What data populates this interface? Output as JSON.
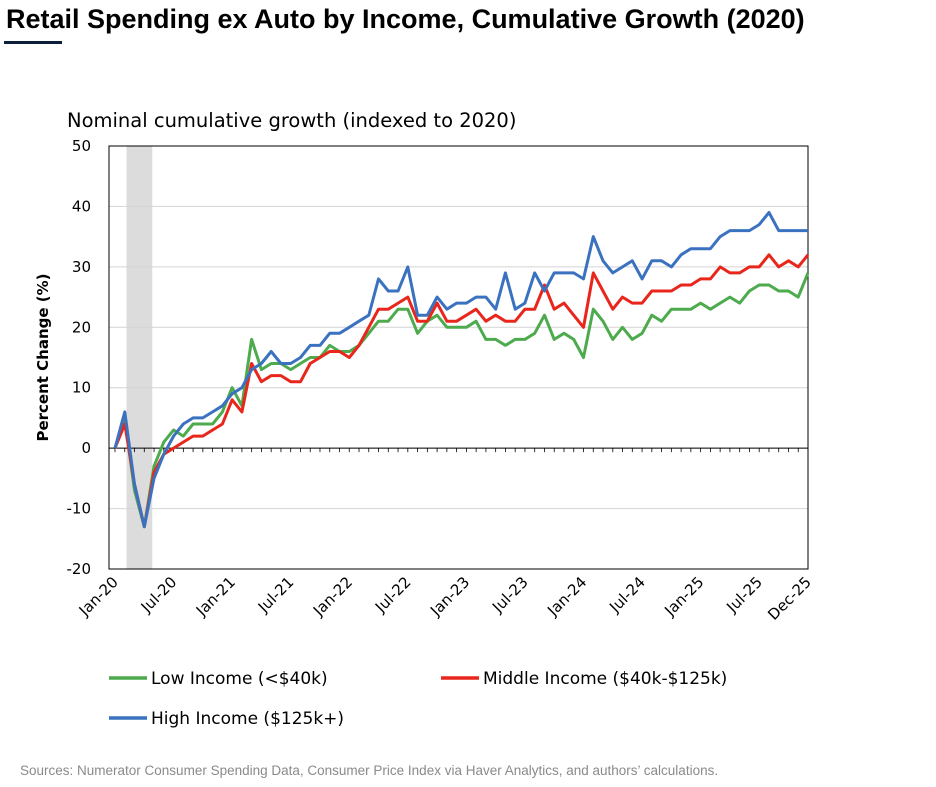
{
  "page": {
    "title": "Retail Spending ex Auto by Income, Cumulative Growth (2020)",
    "source": "Sources: Numerator Consumer Spending Data, Consumer Price Index via Haver Analytics, and authors’ calculations."
  },
  "chart_data": {
    "type": "line",
    "title": "Nominal cumulative growth (indexed to 2020)",
    "xlabel": "",
    "ylabel": "Percent Change (%)",
    "ylim": [
      -20,
      50
    ],
    "yticks": [
      -20,
      -10,
      0,
      10,
      20,
      30,
      40,
      50
    ],
    "grid": true,
    "legend_position": "bottom",
    "recession_shading": {
      "from": "Mar-20",
      "to": "Apr-20"
    },
    "x": [
      "Jan-20",
      "Feb-20",
      "Mar-20",
      "Apr-20",
      "May-20",
      "Jun-20",
      "Jul-20",
      "Aug-20",
      "Sep-20",
      "Oct-20",
      "Nov-20",
      "Dec-20",
      "Jan-21",
      "Feb-21",
      "Mar-21",
      "Apr-21",
      "May-21",
      "Jun-21",
      "Jul-21",
      "Aug-21",
      "Sep-21",
      "Oct-21",
      "Nov-21",
      "Dec-21",
      "Jan-22",
      "Feb-22",
      "Mar-22",
      "Apr-22",
      "May-22",
      "Jun-22",
      "Jul-22",
      "Aug-22",
      "Sep-22",
      "Oct-22",
      "Nov-22",
      "Dec-22",
      "Jan-23",
      "Feb-23",
      "Mar-23",
      "Apr-23",
      "May-23",
      "Jun-23",
      "Jul-23",
      "Aug-23",
      "Sep-23",
      "Oct-23",
      "Nov-23",
      "Dec-23",
      "Jan-24",
      "Feb-24",
      "Mar-24",
      "Apr-24",
      "May-24",
      "Jun-24",
      "Jul-24",
      "Aug-24",
      "Sep-24",
      "Oct-24",
      "Nov-24",
      "Dec-24",
      "Jan-25",
      "Feb-25",
      "Mar-25",
      "Apr-25",
      "May-25",
      "Jun-25",
      "Jul-25",
      "Aug-25",
      "Sep-25",
      "Oct-25",
      "Nov-25",
      "Dec-25"
    ],
    "x_tick_labels": [
      "Jan-20",
      "Jul-20",
      "Jan-21",
      "Jul-21",
      "Jan-22",
      "Jul-22",
      "Jan-23",
      "Jul-23",
      "Jan-24",
      "Jul-24",
      "Jan-25",
      "Jul-25",
      "Dec-25"
    ],
    "series": [
      {
        "name": "Low Income (<$40k)",
        "color": "#4daa4d",
        "values": [
          0,
          5,
          -7,
          -13,
          -3,
          1,
          3,
          2,
          4,
          4,
          4,
          6,
          10,
          7,
          18,
          13,
          14,
          14,
          13,
          14,
          15,
          15,
          17,
          16,
          16,
          17,
          19,
          21,
          21,
          23,
          23,
          19,
          21,
          22,
          20,
          20,
          20,
          21,
          18,
          18,
          17,
          18,
          18,
          19,
          22,
          18,
          19,
          18,
          15,
          23,
          21,
          18,
          20,
          18,
          19,
          22,
          21,
          23,
          23,
          23,
          24,
          23,
          24,
          25,
          24,
          26,
          27,
          27,
          26,
          26,
          25,
          29
        ]
      },
      {
        "name": "Middle Income ($40k-$125k)",
        "color": "#e8261b",
        "values": [
          0,
          4,
          -6,
          -13,
          -4,
          -1,
          0,
          1,
          2,
          2,
          3,
          4,
          8,
          6,
          14,
          11,
          12,
          12,
          11,
          11,
          14,
          15,
          16,
          16,
          15,
          17,
          20,
          23,
          23,
          24,
          25,
          21,
          21,
          24,
          21,
          21,
          22,
          23,
          21,
          22,
          21,
          21,
          23,
          23,
          27,
          23,
          24,
          22,
          20,
          29,
          26,
          23,
          25,
          24,
          24,
          26,
          26,
          26,
          27,
          27,
          28,
          28,
          30,
          29,
          29,
          30,
          30,
          32,
          30,
          31,
          30,
          32
        ]
      },
      {
        "name": "High Income ($125k+)",
        "color": "#3b72c0",
        "values": [
          0,
          6,
          -6,
          -13,
          -5,
          -1,
          2,
          4,
          5,
          5,
          6,
          7,
          9,
          10,
          13,
          14,
          16,
          14,
          14,
          15,
          17,
          17,
          19,
          19,
          20,
          21,
          22,
          28,
          26,
          26,
          30,
          22,
          22,
          25,
          23,
          24,
          24,
          25,
          25,
          23,
          29,
          23,
          24,
          29,
          26,
          29,
          29,
          29,
          28,
          35,
          31,
          29,
          30,
          31,
          28,
          31,
          31,
          30,
          32,
          33,
          33,
          33,
          35,
          36,
          36,
          36,
          37,
          39,
          36,
          36,
          36,
          36
        ]
      }
    ]
  }
}
